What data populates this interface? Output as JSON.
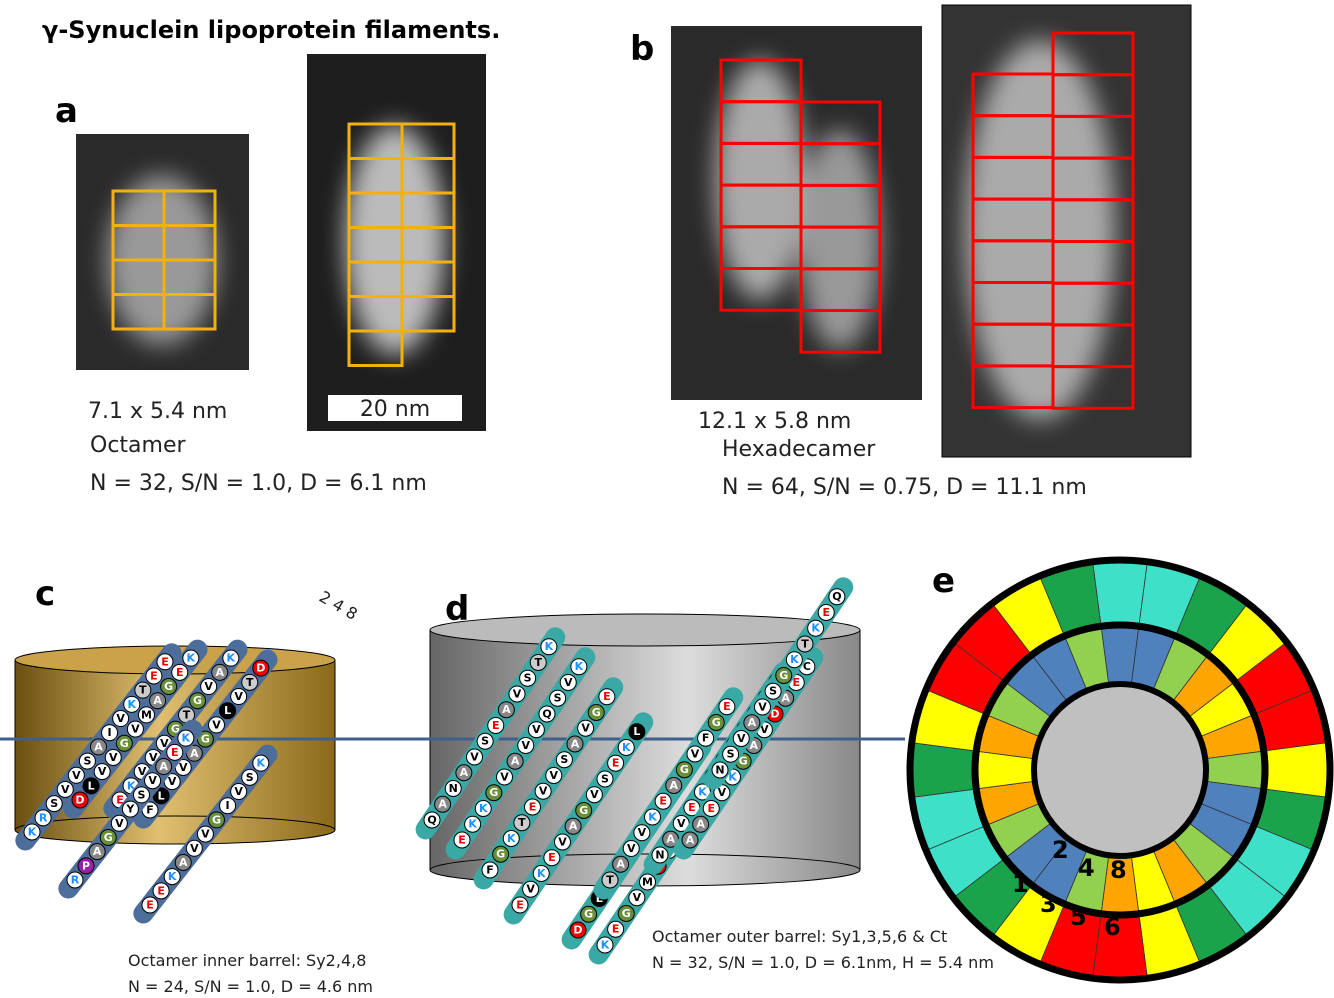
{
  "title": "γ-Synuclein lipoprotein filaments.",
  "a": {
    "label": "a",
    "size": "7.1 x  5.4  nm",
    "name": "Octamer",
    "stats": "N = 32, S/N = 1.0, D = 6.1 nm",
    "scale_bar": "20 nm"
  },
  "b": {
    "label": "b",
    "size": "12.1 x 5.8 nm",
    "name": "Hexadecamer",
    "stats": "N = 64, S/N = 0.75, D = 11.1 nm"
  },
  "c": {
    "label": "c",
    "turn_label": "2 4 8",
    "caption": [
      "Octamer inner barrel: Sy2,4,8",
      "N = 24, S/N = 1.0, D = 4.6 nm"
    ],
    "strands": [
      "KRSVVSAIVKTEE",
      "DLVVGVMAGEK",
      "EKVVVGTGVAK",
      "FLVVAGVLVTD",
      "RPAGVYSVAEK",
      "EEKAVVGIVSK"
    ]
  },
  "d": {
    "label": "d",
    "caption": [
      "Octamer outer barrel: Sy1,3,5,6 & Ct",
      "N = 32, S/N = 1.0, D = 6.1nm, H = 5.4 nm"
    ],
    "strands": [
      "QANAVSEAVSTK",
      "EKKGVAVVQSVK",
      "FGKTEVVSAVGE",
      "EVKEVAGVSEKL",
      "DGLVAFKMVVEQ",
      "KEGVMDVGAKEE",
      "TAVVKEAGVFGE",
      "NAVEKGVSVKEK",
      "AAEVKGAVDAEC",
      "NSVAVSGKTKEQ"
    ]
  },
  "e": {
    "label": "e",
    "numbers": [
      "1",
      "2",
      "3",
      "4",
      "5",
      "6",
      "8"
    ],
    "outer_colors": [
      "#3ee0c8",
      "#3ee0c8",
      "#1aa34a",
      "#ffff00",
      "#ff0000",
      "#ff0000",
      "#ffff00",
      "#1aa34a",
      "#3ee0c8",
      "#3ee0c8",
      "#1aa34a",
      "#ffff00",
      "#ff0000",
      "#ff0000",
      "#ffff00",
      "#1aa34a",
      "#3ee0c8",
      "#3ee0c8",
      "#1aa34a",
      "#ffff00",
      "#ff0000",
      "#ff0000",
      "#ffff00",
      "#1aa34a"
    ],
    "inner_colors": [
      "#4f81bd",
      "#4f81bd",
      "#92d050",
      "#ffa500",
      "#ffff00",
      "#ffa500",
      "#92d050",
      "#4f81bd",
      "#4f81bd",
      "#92d050",
      "#ffa500",
      "#ffff00",
      "#ffa500",
      "#92d050",
      "#4f81bd",
      "#4f81bd",
      "#92d050",
      "#ffa500",
      "#ffff00",
      "#ffa500",
      "#92d050",
      "#4f81bd",
      "#4f81bd",
      "#92d050"
    ]
  }
}
